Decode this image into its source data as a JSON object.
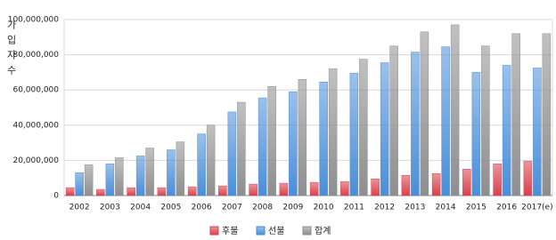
{
  "chart_data": {
    "type": "bar",
    "y_label": "가입자수",
    "categories": [
      "2002",
      "2003",
      "2004",
      "2005",
      "2006",
      "2007",
      "2008",
      "2009",
      "2010",
      "2011",
      "2012",
      "2013",
      "2014",
      "2015",
      "2016",
      "2017(e)"
    ],
    "series": [
      {
        "name": "후불",
        "color": "#d9404a",
        "values": [
          4500000,
          3500000,
          4500000,
          4500000,
          5000000,
          5500000,
          6500000,
          7000000,
          7500000,
          8000000,
          9500000,
          11500000,
          12500000,
          15000000,
          18000000,
          19500000
        ]
      },
      {
        "name": "선불",
        "color": "#4a8ed8",
        "values": [
          13000000,
          18000000,
          22500000,
          26000000,
          35000000,
          47500000,
          55500000,
          59000000,
          64500000,
          69500000,
          75500000,
          81500000,
          84500000,
          70000000,
          74000000,
          72500000
        ]
      },
      {
        "name": "합계",
        "color": "#8e8e8e",
        "values": [
          17500000,
          21500000,
          27000000,
          30500000,
          40000000,
          53000000,
          62000000,
          66000000,
          72000000,
          77500000,
          85000000,
          93000000,
          97000000,
          85000000,
          92000000,
          92000000
        ]
      }
    ],
    "ylim": [
      0,
      100000000
    ],
    "yticks": [
      0,
      {
        "value": 20000000,
        "label": "20,000,000"
      },
      {
        "value": 40000000,
        "label": "40,000,000"
      },
      {
        "value": 60000000,
        "label": "60,000,000"
      },
      {
        "value": 80000000,
        "label": "80,000,000"
      },
      {
        "value": 100000000,
        "label": "100,000,000"
      }
    ],
    "grid": true
  }
}
